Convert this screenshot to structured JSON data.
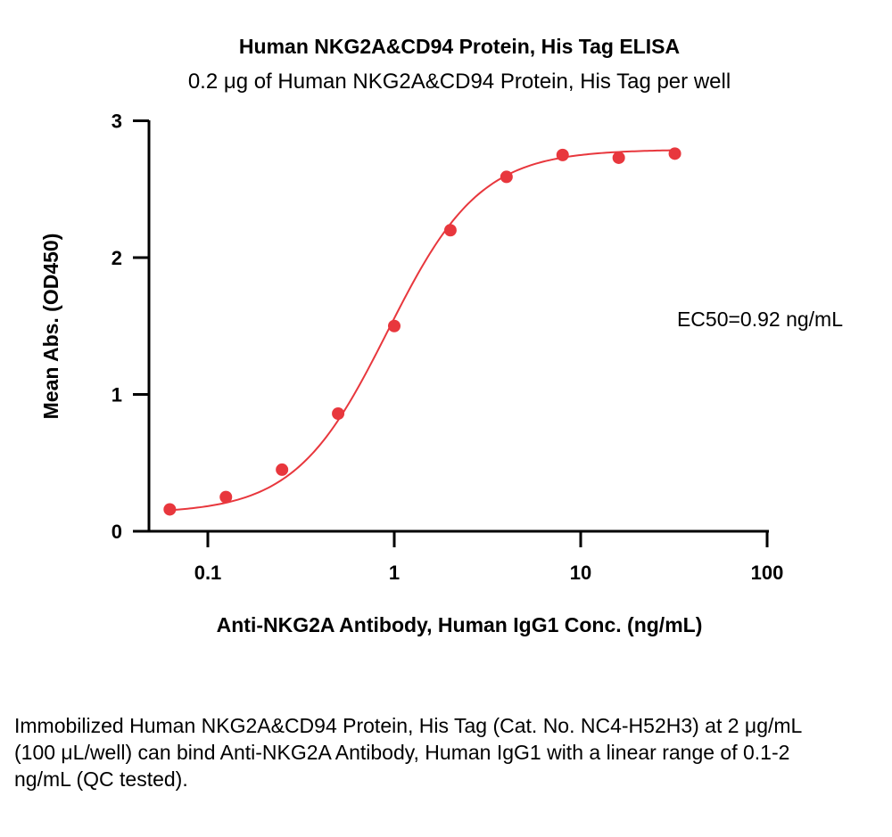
{
  "chart_data": {
    "type": "scatter",
    "title": "Human NKG2A&CD94 Protein, His Tag ELISA",
    "subtitle": "0.2 μg of Human NKG2A&CD94 Protein, His Tag per well",
    "xlabel": "Anti-NKG2A Antibody, Human IgG1 Conc. (ng/mL)",
    "ylabel": "Mean Abs. (OD450)",
    "xscale": "log",
    "xlim": [
      0.06,
      100
    ],
    "ylim": [
      0,
      3
    ],
    "xticks": [
      0.1,
      1,
      10,
      100
    ],
    "xtick_labels": [
      "0.1",
      "1",
      "10",
      "100"
    ],
    "yticks": [
      0,
      1,
      2,
      3
    ],
    "ytick_labels": [
      "0",
      "1",
      "2",
      "3"
    ],
    "grid": false,
    "series": [
      {
        "x": [
          0.0625,
          0.125,
          0.25,
          0.5,
          1,
          2,
          4,
          8,
          16,
          32
        ],
        "y": [
          0.16,
          0.25,
          0.45,
          0.86,
          1.5,
          2.2,
          2.59,
          2.75,
          2.73,
          2.76
        ],
        "color": "#e8373d",
        "fit": "4PL",
        "fit_params": {
          "bottom": 0.13,
          "top": 2.79,
          "ec50": 0.92,
          "hill": 1.75
        }
      }
    ],
    "annotation": "EC50=0.92 ng/mL"
  },
  "caption": "Immobilized Human NKG2A&CD94 Protein, His Tag (Cat. No. NC4-H52H3) at 2 μg/mL (100 μL/well) can bind Anti-NKG2A Antibody, Human IgG1 with a linear range of 0.1-2 ng/mL (QC tested)."
}
